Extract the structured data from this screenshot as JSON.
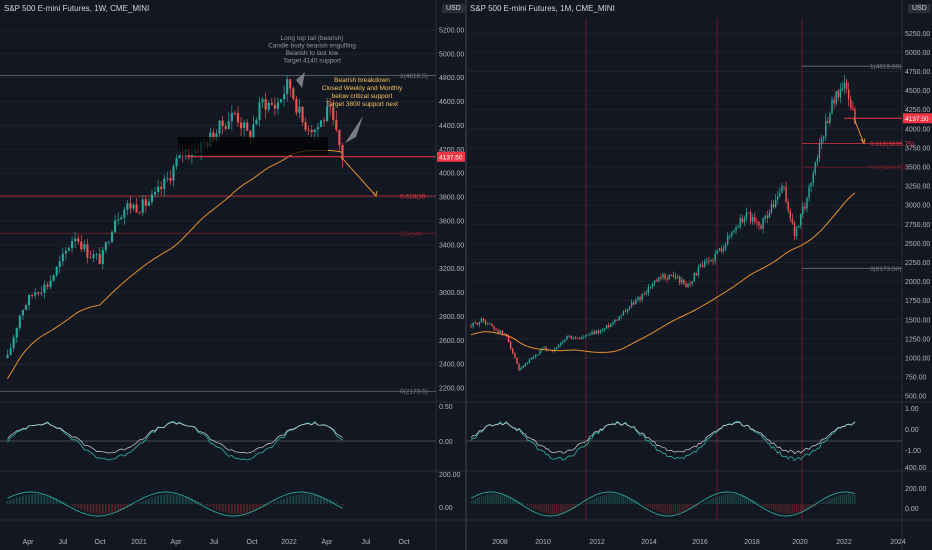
{
  "colors": {
    "background": "#131722",
    "grid": "#1e222d",
    "up": "#26a69a",
    "down": "#ef5350",
    "ma": "#e38f2d",
    "fib_line": "#787b86",
    "support_red": "#f23645",
    "price_badge": "#f23645",
    "annotation_orange": "#f7c35c",
    "annotation_grey": "#9598a1"
  },
  "left": {
    "title": "S&P 500 E-mini Futures, 1W, CME_MINI",
    "scale_label": "USD",
    "price_badge": "4137.50",
    "annotations": {
      "upper": [
        "Long top tail (bearish)",
        "Candle body bearish engulfing",
        "Bearish to last low",
        "Target 4140 support"
      ],
      "lower": [
        "Bearish breakdown",
        "Closed Weekly and Monthly",
        "below critical support",
        "Target 3800 support next"
      ]
    },
    "fib_labels": {
      "top": "1(4818.5)",
      "fib618": "0.618(38",
      "fib5": "0.5(349",
      "bottom": "0(2173.5)"
    },
    "x_ticks": [
      "Apr",
      "Jul",
      "Oct",
      "2021",
      "Apr",
      "Jul",
      "Oct",
      "2022",
      "Apr",
      "Jul",
      "Oct"
    ],
    "osc1_ticks": [
      "0.50",
      "0.00"
    ],
    "osc2_ticks": [
      "200.00",
      "0.00"
    ]
  },
  "right": {
    "title": "S&P 500 E-mini Futures, 1M, CME_MINI",
    "scale_label": "USD",
    "price_badge": "4137.50",
    "fib_labels": {
      "top": "1(4819.50)",
      "fib618": "0.618(3808.75)",
      "fib5": "0.5(3496.50)",
      "bottom": "0(2173.50)"
    },
    "x_ticks": [
      "2008",
      "2010",
      "2012",
      "2014",
      "2016",
      "2018",
      "2020",
      "2022",
      "2024"
    ],
    "osc1_ticks": [
      "1.00",
      "0.00",
      "-1.00"
    ],
    "osc2_ticks": [
      "400.00",
      "200.00",
      "0.00"
    ]
  },
  "chart_data": [
    {
      "type": "line",
      "title": "S&P 500 E-mini Futures, 1W, CME_MINI",
      "description_series": "weekly close (approx.)",
      "x": [
        "2020-03",
        "2020-04",
        "2020-05",
        "2020-06",
        "2020-07",
        "2020-08",
        "2020-09",
        "2020-10",
        "2020-11",
        "2020-12",
        "2021-01",
        "2021-02",
        "2021-03",
        "2021-04",
        "2021-05",
        "2021-06",
        "2021-07",
        "2021-08",
        "2021-09",
        "2021-10",
        "2021-11",
        "2021-12",
        "2022-01",
        "2022-02",
        "2022-03",
        "2022-04"
      ],
      "series": [
        {
          "name": "",
          "values": [
            2450,
            2850,
            3010,
            3070,
            3260,
            3490,
            3330,
            3270,
            3630,
            3730,
            3720,
            3800,
            3960,
            4180,
            4200,
            4280,
            4400,
            4510,
            4300,
            4600,
            4560,
            4760,
            4430,
            4370,
            4530,
            4137
          ]
        }
      ],
      "y_ticks": [
        2200,
        2400,
        2600,
        2800,
        3000,
        3200,
        3400,
        3600,
        3800,
        4000,
        4200,
        4400,
        4600,
        4800,
        5000,
        5200
      ],
      "ylim": [
        2100,
        5300
      ],
      "horizontal_levels": {
        "fib_1": 4818.5,
        "fib_0618": 3808.75,
        "fib_05": 3496.5,
        "fib_0": 2173.5,
        "support": 4137.5
      },
      "last_price": 4137.5
    },
    {
      "type": "line",
      "title": "S&P 500 E-mini Futures, 1M, CME_MINI",
      "description_series": "monthly close (approx.)",
      "x": [
        2007,
        2007.5,
        2008,
        2008.5,
        2009,
        2009.5,
        2010,
        2010.5,
        2011,
        2011.5,
        2012,
        2012.5,
        2013,
        2013.5,
        2014,
        2014.5,
        2015,
        2015.5,
        2016,
        2016.5,
        2017,
        2017.5,
        2018,
        2018.5,
        2019,
        2019.5,
        2020,
        2020.25,
        2020.5,
        2021,
        2021.5,
        2022,
        2022.3
      ],
      "series": [
        {
          "name": "",
          "values": [
            1420,
            1500,
            1380,
            1280,
            830,
            980,
            1120,
            1100,
            1280,
            1250,
            1310,
            1370,
            1500,
            1650,
            1780,
            1950,
            2060,
            2070,
            1940,
            2170,
            2280,
            2470,
            2700,
            2900,
            2700,
            2950,
            3230,
            2600,
            3100,
            3750,
            4300,
            4600,
            4137
          ]
        }
      ],
      "y_ticks": [
        500,
        750,
        1000,
        1250,
        1500,
        1750,
        2000,
        2250,
        2500,
        2750,
        3000,
        3250,
        3500,
        3750,
        4000,
        4250,
        4500,
        4750,
        5000,
        5250
      ],
      "ylim": [
        450,
        5450
      ],
      "horizontal_levels": {
        "fib_1": 4819.5,
        "fib_0618": 3808.75,
        "fib_05": 3496.5,
        "fib_0": 2173.5,
        "support": 4137.5
      },
      "last_price": 4137.5
    }
  ]
}
